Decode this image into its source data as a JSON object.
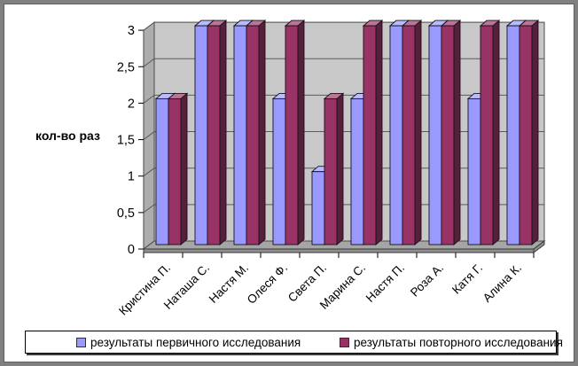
{
  "window": {
    "background": "#FFFFFF",
    "frame_color": "#808080"
  },
  "chart_data": {
    "type": "bar",
    "style": "3d-clustered-column",
    "title": "",
    "xlabel": "",
    "ylabel": "кол-во раз",
    "categories": [
      "Кристина П.",
      "Наташа С.",
      "Настя М.",
      "Олеся Ф.",
      "Света П.",
      "Марина С.",
      "Настя П.",
      "Роза А.",
      "Катя Г.",
      "Алина К."
    ],
    "series": [
      {
        "name": "результаты первичного исследования",
        "color": "#9999FF",
        "values": [
          2,
          3,
          3,
          2,
          1,
          2,
          3,
          3,
          2,
          3
        ]
      },
      {
        "name": "результаты повторного исследования",
        "color": "#993366",
        "values": [
          2,
          3,
          3,
          3,
          2,
          3,
          3,
          3,
          3,
          3
        ]
      }
    ],
    "ylim": [
      0,
      3
    ],
    "ytick_step": 0.5,
    "ytick_labels": [
      "0",
      "0,5",
      "1",
      "1,5",
      "2",
      "2,5",
      "3"
    ],
    "grid": true,
    "legend_position": "bottom",
    "colors": {
      "back_wall": "#C8C8C8",
      "side_wall": "#ADADAD",
      "floor": "#A6A6A6",
      "floor_edge": "#8F8F8F",
      "gridline": "#5A5A5A",
      "axis_text": "#000000"
    }
  }
}
